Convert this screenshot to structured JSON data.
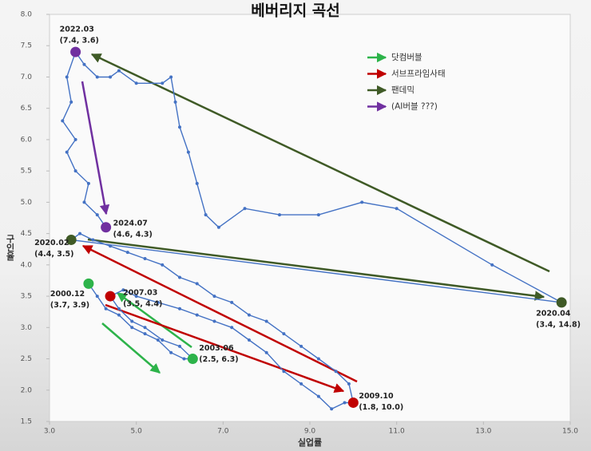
{
  "chart_data": {
    "type": "line",
    "title": "베버리지 곡선",
    "x_label": "실업률",
    "y_label": "구인율",
    "color": "#4472c4",
    "x": [
      3.9,
      4.1,
      4.3,
      4.6,
      4.9,
      5.2,
      5.5,
      5.8,
      6.1,
      6.3,
      6.0,
      5.6,
      5.2,
      4.9,
      4.6,
      4.4,
      4.7,
      5.0,
      5.5,
      6.0,
      6.4,
      6.8,
      7.2,
      7.6,
      8.0,
      8.4,
      8.8,
      9.2,
      9.5,
      9.8,
      10.0,
      9.9,
      9.6,
      9.2,
      8.8,
      8.4,
      8.0,
      7.6,
      7.2,
      6.8,
      6.4,
      6.0,
      5.6,
      5.2,
      4.8,
      4.4,
      4.0,
      3.7,
      3.5,
      14.8,
      13.2,
      11.0,
      10.2,
      9.2,
      8.3,
      7.5,
      6.9,
      6.6,
      6.4,
      6.2,
      6.0,
      5.9,
      5.8,
      5.6,
      5.0,
      4.6,
      4.4,
      4.1,
      3.8,
      3.6,
      3.4,
      3.5,
      3.3,
      3.6,
      3.4,
      3.6,
      3.9,
      3.8,
      4.1,
      4.3
    ],
    "values": [
      3.7,
      3.5,
      3.3,
      3.2,
      3.0,
      2.9,
      2.8,
      2.6,
      2.5,
      2.5,
      2.7,
      2.8,
      3.0,
      3.1,
      3.3,
      3.5,
      3.6,
      3.5,
      3.4,
      3.3,
      3.2,
      3.1,
      3.0,
      2.8,
      2.6,
      2.3,
      2.1,
      1.9,
      1.7,
      1.8,
      1.8,
      2.1,
      2.3,
      2.5,
      2.7,
      2.9,
      3.1,
      3.2,
      3.4,
      3.5,
      3.7,
      3.8,
      4.0,
      4.1,
      4.2,
      4.3,
      4.4,
      4.5,
      4.4,
      3.4,
      4.0,
      4.9,
      5.0,
      4.8,
      4.8,
      4.9,
      4.6,
      4.8,
      5.3,
      5.8,
      6.2,
      6.6,
      7.0,
      6.9,
      6.9,
      7.1,
      7.0,
      7.0,
      7.2,
      7.4,
      7.0,
      6.6,
      6.3,
      6.0,
      5.8,
      5.5,
      5.3,
      5.0,
      4.8,
      4.6
    ],
    "xlim": [
      3.0,
      15.0
    ],
    "xticks": [
      {
        "value": 3,
        "label": "3.0"
      },
      {
        "value": 5,
        "label": "5.0"
      },
      {
        "value": 7,
        "label": "7.0"
      },
      {
        "value": 9,
        "label": "9.0"
      },
      {
        "value": 11,
        "label": "11.0"
      },
      {
        "value": 13,
        "label": "13.0"
      },
      {
        "value": 15,
        "label": "15.0"
      }
    ],
    "ylim": [
      1.5,
      8.0
    ],
    "yticks": [
      1.5,
      {
        "value": 2,
        "label": "2.0"
      },
      2.5,
      {
        "value": 3,
        "label": "3.0"
      },
      3.5,
      {
        "value": 4,
        "label": "4.0"
      },
      4.5,
      {
        "value": 5,
        "label": "5.0"
      },
      5.5,
      {
        "value": 6,
        "label": "6.0"
      },
      6.5,
      {
        "value": 7,
        "label": "7.0"
      },
      7.5,
      {
        "value": 8,
        "label": "8.0"
      }
    ],
    "highlights": [
      {
        "name": "2022.03",
        "note": "(7.4, 3.6)",
        "x": 3.6,
        "y": 7.4,
        "color": "#7030a0"
      },
      {
        "name": "2024.07",
        "note": "(4.6, 4.3)",
        "x": 4.3,
        "y": 4.6,
        "color": "#7030a0"
      },
      {
        "name": "2020.02",
        "note": "(4.4, 3.5)",
        "x": 3.5,
        "y": 4.4,
        "color": "#3f5a26"
      },
      {
        "name": "2000.12",
        "note": "(3.7, 3.9)",
        "x": 3.9,
        "y": 3.7,
        "color": "#2db34a"
      },
      {
        "name": "2007.03",
        "note": "(3.5, 4.4)",
        "x": 4.4,
        "y": 3.5,
        "color": "#c00000"
      },
      {
        "name": "2003.06",
        "note": "(2.5, 6.3)",
        "x": 6.3,
        "y": 2.5,
        "color": "#2db34a"
      },
      {
        "name": "2009.10",
        "note": "(1.8, 10.0)",
        "x": 10.0,
        "y": 1.8,
        "color": "#c00000"
      },
      {
        "name": "2020.04",
        "note": "(3.4, 14.8)",
        "x": 14.8,
        "y": 3.4,
        "color": "#3f5a26"
      }
    ],
    "legend": {
      "position": "upper right",
      "items": [
        {
          "label": "닷컴버블",
          "color": "#2db34a"
        },
        {
          "label": "서브프라임사태",
          "color": "#c00000"
        },
        {
          "label": "팬데믹",
          "color": "#3f5a26"
        },
        {
          "label": "(AI버블 ???)",
          "color": "#7030a0"
        }
      ]
    }
  }
}
